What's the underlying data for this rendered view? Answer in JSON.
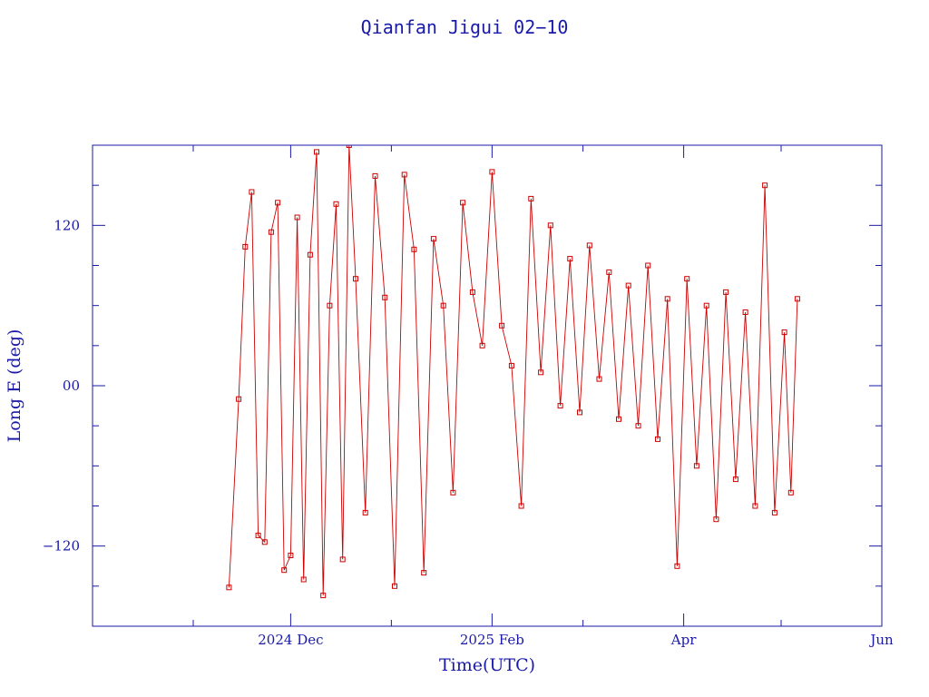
{
  "chart_data": {
    "type": "scatter",
    "title": "Qianfan Jigui 02−10",
    "xlabel": "Time(UTC)",
    "ylabel": "Long E (deg)",
    "xlim": [
      "2024-10-01",
      "2025-06-01"
    ],
    "ylim": [
      -180,
      180
    ],
    "x_tick_labels": [
      {
        "date": "2024-12-01",
        "label": "2024 Dec"
      },
      {
        "date": "2025-02-01",
        "label": "2025 Feb"
      },
      {
        "date": "2025-04-01",
        "label": "Apr"
      },
      {
        "date": "2025-06-01",
        "label": "Jun"
      }
    ],
    "y_tick_labels": [
      {
        "value": 120,
        "label": "120"
      },
      {
        "value": 0,
        "label": "00"
      },
      {
        "value": -120,
        "label": "−120"
      }
    ],
    "grid": false,
    "colors": {
      "axis": "#1a1aa8",
      "series": "#cc0000"
    },
    "series": [
      {
        "marker": "square",
        "points": [
          [
            "2024-11-12",
            -151
          ],
          [
            "2024-11-15",
            -10
          ],
          [
            "2024-11-17",
            104
          ],
          [
            "2024-11-19",
            145
          ],
          [
            "2024-11-21",
            -112
          ],
          [
            "2024-11-23",
            -117
          ],
          [
            "2024-11-25",
            115
          ],
          [
            "2024-11-27",
            137
          ],
          [
            "2024-11-29",
            -138
          ],
          [
            "2024-12-01",
            -127
          ],
          [
            "2024-12-03",
            126
          ],
          [
            "2024-12-05",
            -145
          ],
          [
            "2024-12-07",
            98
          ],
          [
            "2024-12-09",
            175
          ],
          [
            "2024-12-11",
            -157
          ],
          [
            "2024-12-13",
            60
          ],
          [
            "2024-12-15",
            136
          ],
          [
            "2024-12-17",
            -130
          ],
          [
            "2024-12-19",
            180
          ],
          [
            "2024-12-21",
            80
          ],
          [
            "2024-12-24",
            -95
          ],
          [
            "2024-12-27",
            157
          ],
          [
            "2024-12-30",
            66
          ],
          [
            "2025-01-02",
            -150
          ],
          [
            "2025-01-05",
            158
          ],
          [
            "2025-01-08",
            102
          ],
          [
            "2025-01-11",
            -140
          ],
          [
            "2025-01-14",
            110
          ],
          [
            "2025-01-17",
            60
          ],
          [
            "2025-01-20",
            -80
          ],
          [
            "2025-01-23",
            137
          ],
          [
            "2025-01-26",
            70
          ],
          [
            "2025-01-29",
            30
          ],
          [
            "2025-02-01",
            160
          ],
          [
            "2025-02-04",
            45
          ],
          [
            "2025-02-07",
            15
          ],
          [
            "2025-02-10",
            -90
          ],
          [
            "2025-02-13",
            140
          ],
          [
            "2025-02-16",
            10
          ],
          [
            "2025-02-19",
            120
          ],
          [
            "2025-02-22",
            -15
          ],
          [
            "2025-02-25",
            95
          ],
          [
            "2025-02-28",
            -20
          ],
          [
            "2025-03-03",
            105
          ],
          [
            "2025-03-06",
            5
          ],
          [
            "2025-03-09",
            85
          ],
          [
            "2025-03-12",
            -25
          ],
          [
            "2025-03-15",
            75
          ],
          [
            "2025-03-18",
            -30
          ],
          [
            "2025-03-21",
            90
          ],
          [
            "2025-03-24",
            -40
          ],
          [
            "2025-03-27",
            65
          ],
          [
            "2025-03-30",
            -135
          ],
          [
            "2025-04-02",
            80
          ],
          [
            "2025-04-05",
            -60
          ],
          [
            "2025-04-08",
            60
          ],
          [
            "2025-04-11",
            -100
          ],
          [
            "2025-04-14",
            70
          ],
          [
            "2025-04-17",
            -70
          ],
          [
            "2025-04-20",
            55
          ],
          [
            "2025-04-23",
            -90
          ],
          [
            "2025-04-26",
            150
          ],
          [
            "2025-04-29",
            -95
          ],
          [
            "2025-05-02",
            40
          ],
          [
            "2025-05-04",
            -80
          ],
          [
            "2025-05-06",
            65
          ]
        ]
      }
    ]
  }
}
